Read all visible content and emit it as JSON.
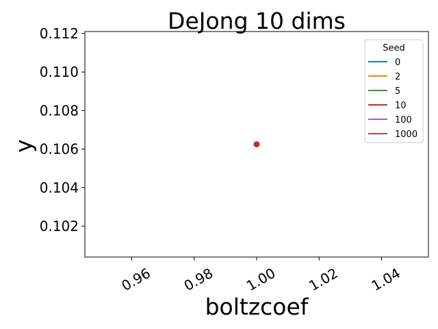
{
  "chart_data": {
    "type": "scatter",
    "title": "DeJong 10 dims",
    "xlabel": "boltzcoef",
    "ylabel": "y",
    "xlim": [
      0.945,
      1.055
    ],
    "ylim": [
      0.1004,
      0.1121
    ],
    "xticks": [
      0.96,
      0.98,
      1.0,
      1.02,
      1.04
    ],
    "xtick_labels": [
      "0.96",
      "0.98",
      "1.00",
      "1.02",
      "1.04"
    ],
    "yticks": [
      0.102,
      0.104,
      0.106,
      0.108,
      0.11,
      0.112
    ],
    "ytick_labels": [
      "0.102",
      "0.104",
      "0.106",
      "0.108",
      "0.110",
      "0.112"
    ],
    "grid": false,
    "legend": {
      "title": "Seed",
      "placement": "top-right",
      "entries": [
        "0",
        "2",
        "5",
        "10",
        "100",
        "1000"
      ]
    },
    "series": [
      {
        "name": "0",
        "color": "#1f77b4",
        "points": []
      },
      {
        "name": "2",
        "color": "#ff7f0e",
        "points": []
      },
      {
        "name": "5",
        "color": "#2ca02c",
        "points": []
      },
      {
        "name": "10",
        "color": "#d62728",
        "points": [
          {
            "x": 1.0,
            "y": 0.10625
          }
        ]
      },
      {
        "name": "100",
        "color": "#9467bd",
        "points": []
      },
      {
        "name": "1000",
        "color": "#8c564b",
        "points": []
      }
    ]
  }
}
